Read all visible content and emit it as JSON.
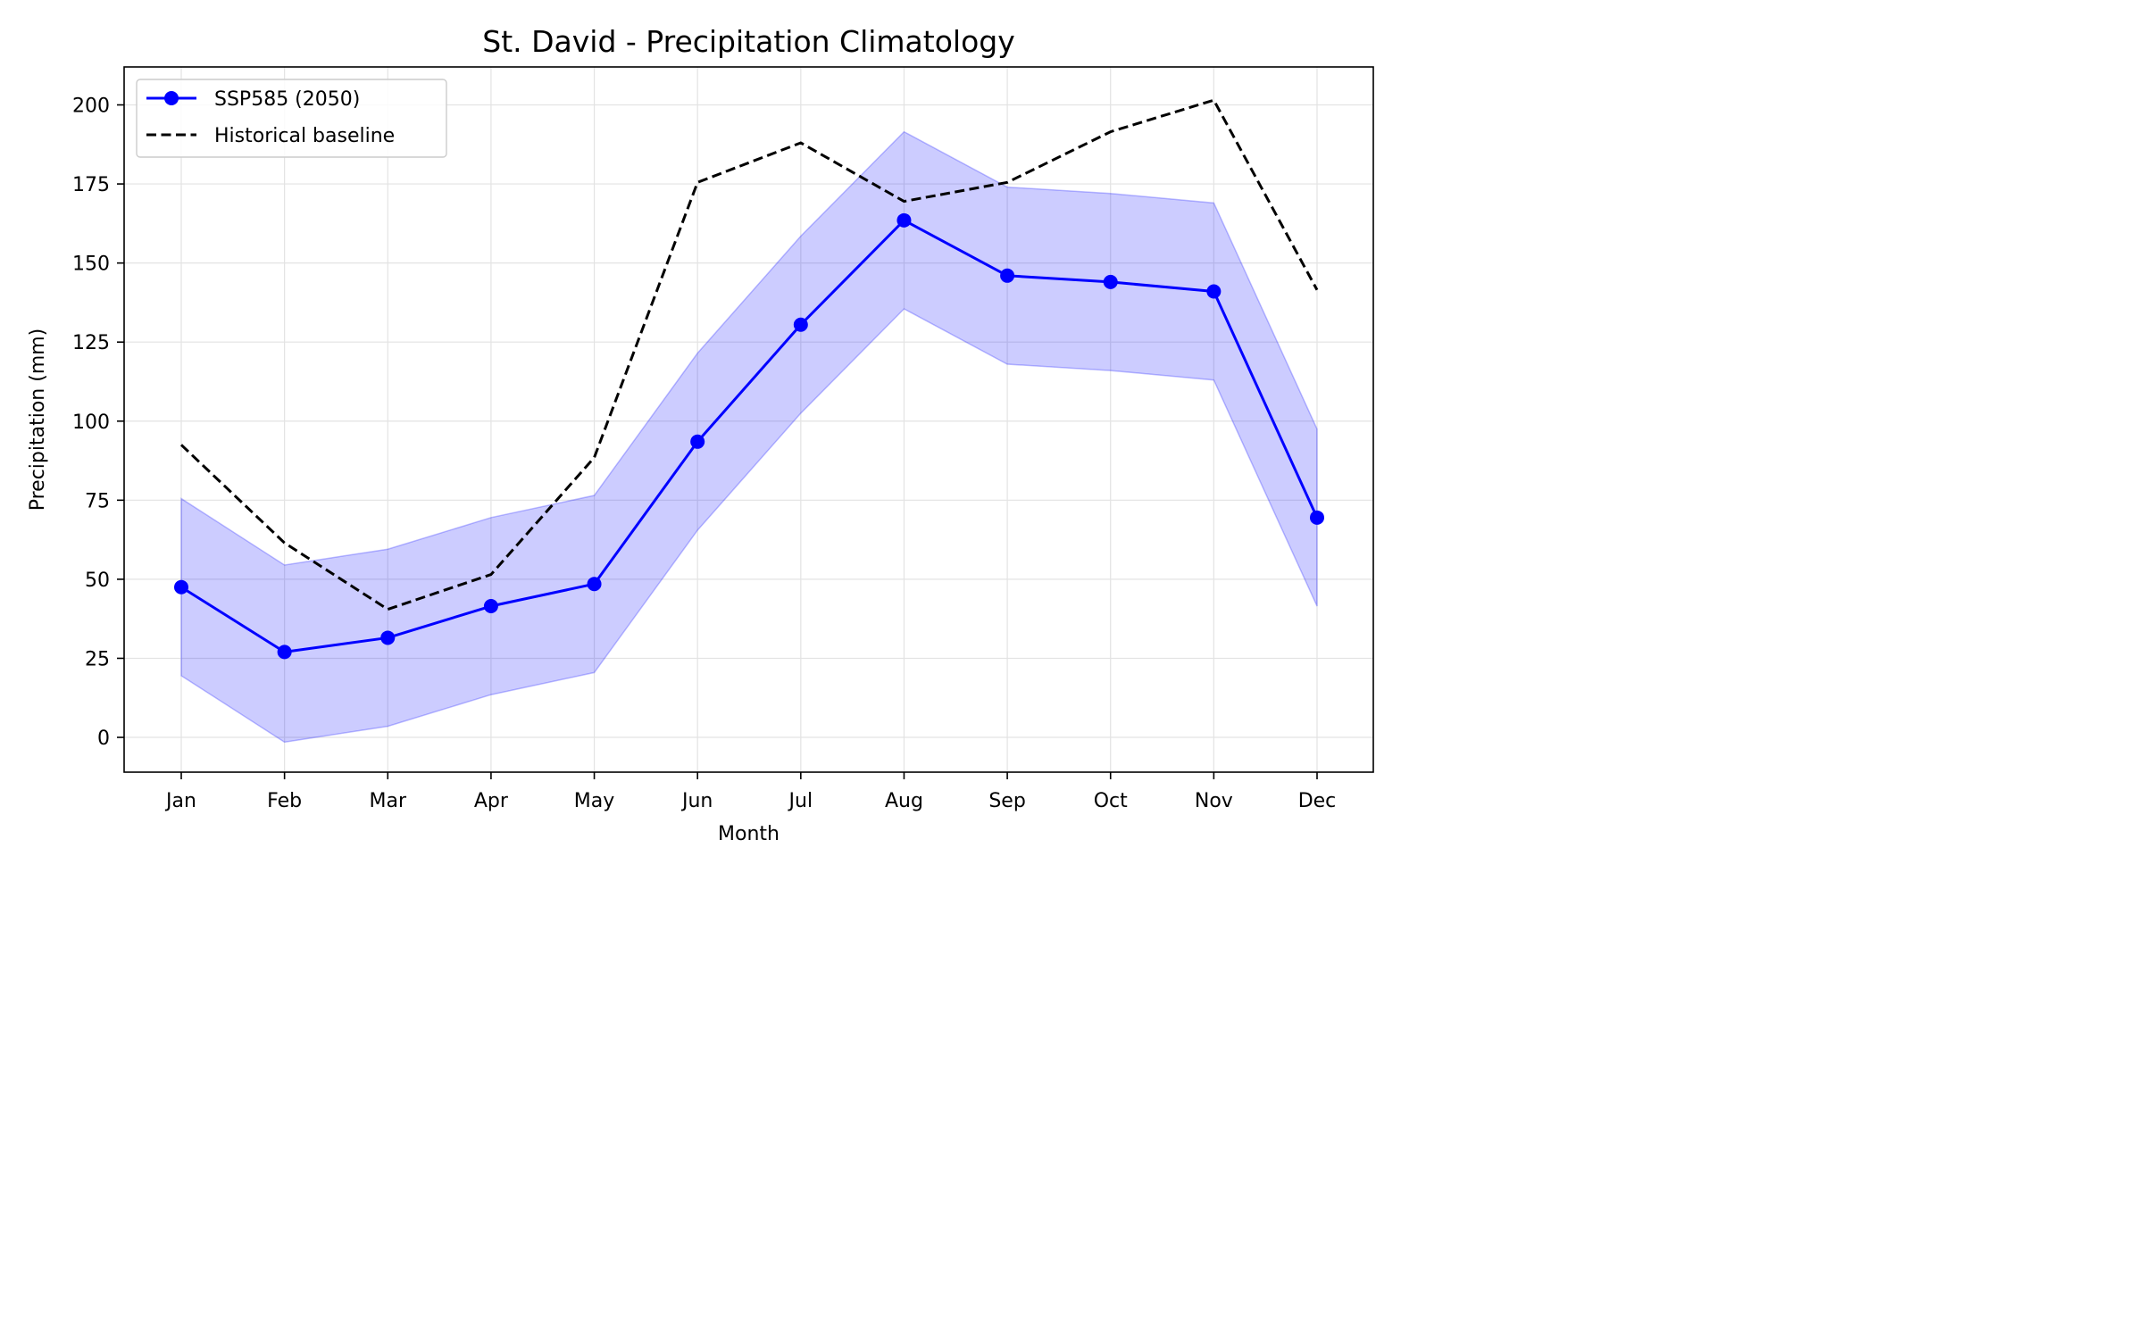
{
  "chart_data": {
    "type": "line",
    "title": "St. David - Precipitation Climatology",
    "xlabel": "Month",
    "ylabel": "Precipitation (mm)",
    "categories": [
      "Jan",
      "Feb",
      "Mar",
      "Apr",
      "May",
      "Jun",
      "Jul",
      "Aug",
      "Sep",
      "Oct",
      "Nov",
      "Dec"
    ],
    "ylim": [
      -11,
      212
    ],
    "yticks": [
      0,
      25,
      50,
      75,
      100,
      125,
      150,
      175,
      200
    ],
    "grid": true,
    "legend_position": "upper-left",
    "series": [
      {
        "name": "SSP585 (2050)",
        "style": "solid-line-with-markers",
        "color": "#0000ff",
        "values": [
          47.5,
          27,
          31.5,
          41.5,
          48.5,
          93.5,
          130.5,
          163.5,
          146,
          144,
          141,
          69.5
        ]
      },
      {
        "name": "Historical baseline",
        "style": "dashed-line",
        "color": "#000000",
        "values": [
          92.5,
          61.5,
          40.5,
          51.5,
          88.5,
          175.5,
          188,
          169.5,
          175.5,
          191.5,
          201.5,
          141.5
        ]
      }
    ],
    "band": {
      "color": "#0000ff",
      "opacity": 0.2,
      "lower": [
        19.5,
        -1.5,
        3.5,
        13.5,
        20.5,
        65.5,
        102.5,
        135.5,
        118,
        116,
        113,
        41.5
      ],
      "upper": [
        75.5,
        54.5,
        59.5,
        69.5,
        76.5,
        121.5,
        158.5,
        191.5,
        174,
        172,
        169,
        97.5
      ]
    }
  }
}
